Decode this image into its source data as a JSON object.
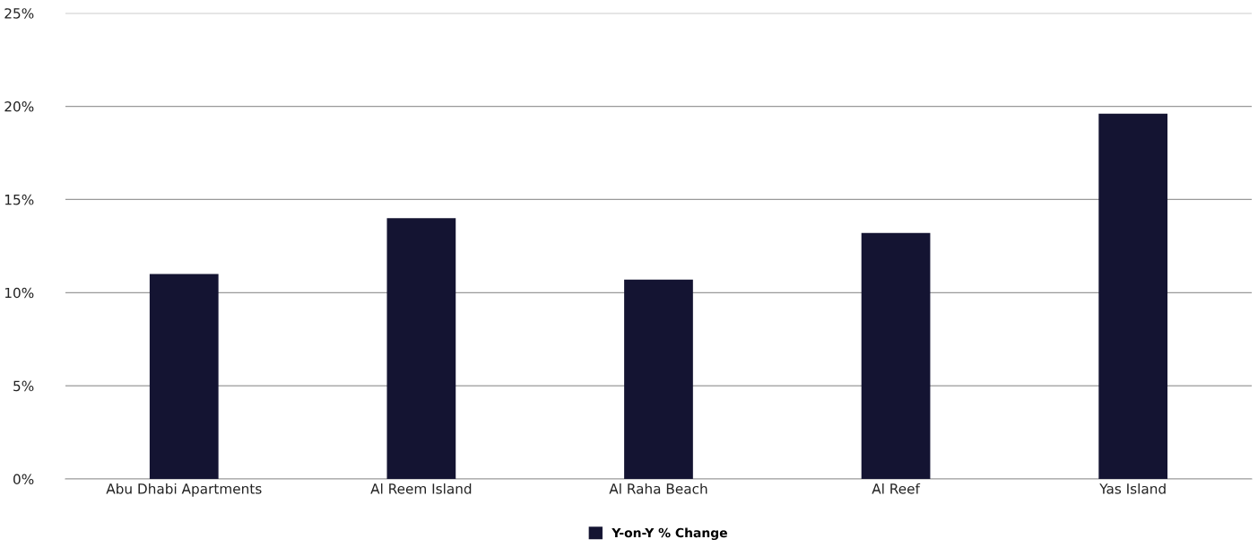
{
  "chart_data": {
    "type": "bar",
    "categories": [
      "Abu Dhabi Apartments",
      "Al Reem Island",
      "Al Raha Beach",
      "Al Reef",
      "Yas Island"
    ],
    "series": [
      {
        "name": "Y-on-Y % Change",
        "color": "#141432",
        "values": [
          11.0,
          14.0,
          10.7,
          13.2,
          19.6
        ]
      }
    ],
    "ylim": [
      0,
      25
    ],
    "yticks": [
      {
        "value": 0,
        "label": "0%"
      },
      {
        "value": 5,
        "label": "5%"
      },
      {
        "value": 10,
        "label": "10%"
      },
      {
        "value": 15,
        "label": "15%"
      },
      {
        "value": 20,
        "label": "20%"
      },
      {
        "value": 25,
        "label": "25%"
      }
    ],
    "grid": "y",
    "legend": "bottom"
  }
}
